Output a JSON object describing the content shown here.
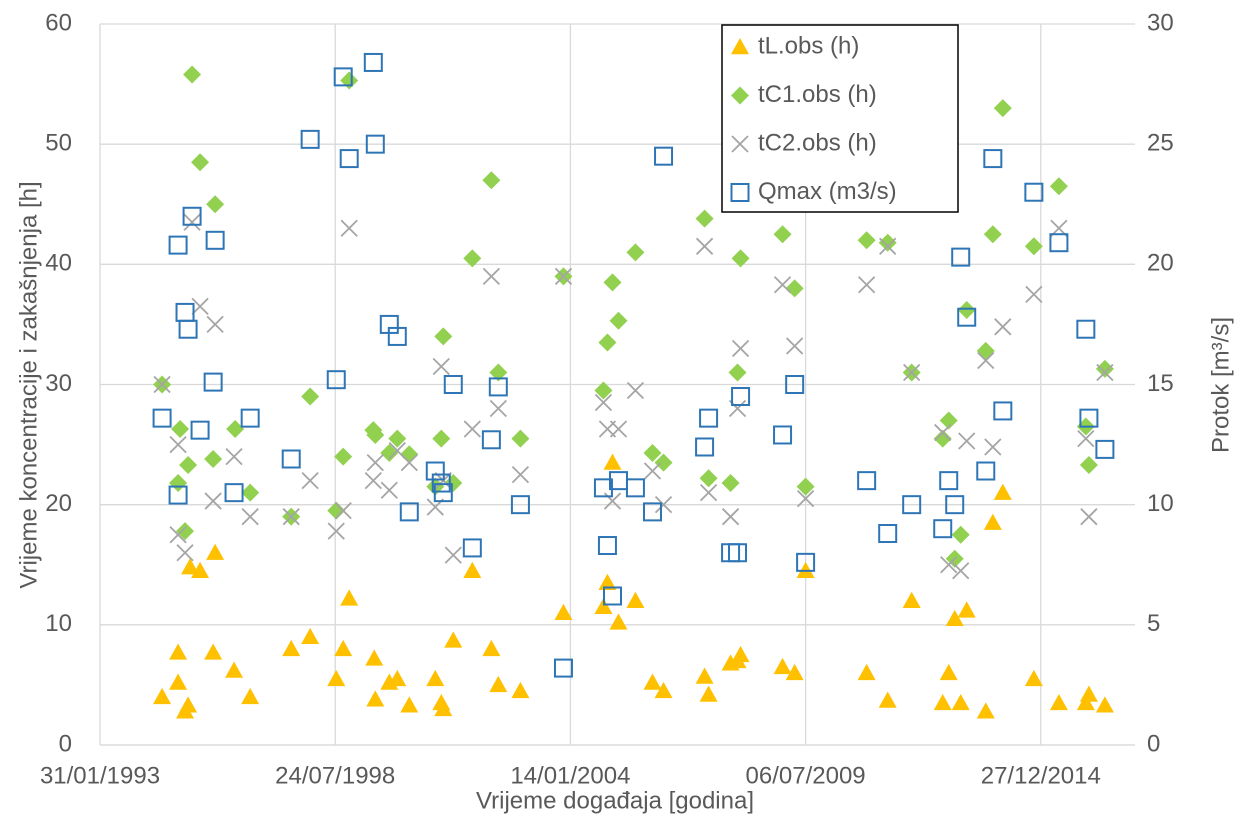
{
  "chart_data": {
    "type": "scatter",
    "x_label": "Vrijeme događaja [godina]",
    "y_label": "Vrijeme koncentracije i zakašnjenja [h]",
    "y2_label": "Protok [m³/s]",
    "xlim": [
      33999,
      42800
    ],
    "xticks": [
      {
        "value": 33999,
        "label": "31/01/1993"
      },
      {
        "value": 35999,
        "label": "24/07/1998"
      },
      {
        "value": 37999,
        "label": "14/01/2004"
      },
      {
        "value": 39999,
        "label": "06/07/2009"
      },
      {
        "value": 41999,
        "label": "27/12/2014"
      }
    ],
    "ylim": [
      0,
      60
    ],
    "yticks": [
      0,
      10,
      20,
      30,
      40,
      50,
      60
    ],
    "y2lim": [
      0,
      30
    ],
    "y2ticks": [
      0,
      5,
      10,
      15,
      20,
      25,
      30
    ],
    "grid": true,
    "legend": "top right",
    "series": [
      {
        "name": "tL.obs (h)",
        "color": "#FFC000",
        "marker": "triangle",
        "x": [
          34527,
          34663,
          34663,
          34722,
          34748,
          34765,
          34850,
          34961,
          34978,
          35139,
          35276,
          35625,
          35786,
          36008,
          36067,
          36118,
          36331,
          36340,
          36459,
          36527,
          36629,
          36850,
          36901,
          36918,
          37003,
          37165,
          37327,
          37386,
          37574,
          37940,
          38280,
          38314,
          38357,
          38408,
          38552,
          38697,
          38791,
          39140,
          39174,
          39361,
          39420,
          39446,
          39803,
          39906,
          39999,
          40518,
          40697,
          40901,
          41165,
          41216,
          41267,
          41318,
          41369,
          41531,
          41591,
          41676,
          41940,
          42153,
          42382,
          42408,
          42544
        ],
        "values": [
          4,
          7.7,
          5.2,
          2.8,
          3.3,
          14.8,
          14.5,
          7.7,
          16,
          6.2,
          4,
          8,
          9,
          5.5,
          8,
          12.2,
          7.2,
          3.8,
          5.2,
          5.5,
          3.3,
          5.5,
          3.5,
          3,
          8.7,
          14.5,
          8,
          5,
          4.5,
          11,
          11.5,
          13.5,
          23.5,
          10.2,
          12,
          5.2,
          4.5,
          5.7,
          4.2,
          6.8,
          7,
          7.5,
          6.5,
          6,
          14.5,
          6,
          3.7,
          12,
          3.5,
          6,
          10.5,
          3.5,
          11.2,
          2.8,
          18.5,
          21,
          5.5,
          3.5,
          3.5,
          4.2,
          3.3
        ]
      },
      {
        "name": "tC1.obs (h)",
        "color": "#92D050",
        "marker": "diamond",
        "x": [
          34527,
          34680,
          34663,
          34722,
          34748,
          34782,
          34850,
          34978,
          34961,
          35148,
          35276,
          35625,
          35786,
          36008,
          36067,
          36118,
          36323,
          36340,
          36459,
          36527,
          36629,
          36850,
          36901,
          36918,
          37003,
          37165,
          37327,
          37386,
          37574,
          37940,
          38280,
          38314,
          38357,
          38408,
          38552,
          38697,
          38791,
          39140,
          39174,
          39361,
          39420,
          39446,
          39803,
          39906,
          39999,
          40518,
          40697,
          40901,
          41165,
          41216,
          41267,
          41318,
          41369,
          41531,
          41591,
          41676,
          41940,
          42153,
          42382,
          42408,
          42544
        ],
        "values": [
          30,
          26.3,
          21.8,
          17.8,
          23.3,
          55.8,
          48.5,
          45,
          23.8,
          26.3,
          21,
          19,
          29,
          19.5,
          24,
          55.3,
          26.2,
          25.8,
          24.3,
          25.5,
          24.2,
          21.5,
          25.5,
          34,
          21.8,
          40.5,
          47,
          31,
          25.5,
          39,
          29.5,
          33.5,
          38.5,
          35.3,
          41,
          24.3,
          23.5,
          43.8,
          22.2,
          21.8,
          31,
          40.5,
          42.5,
          38,
          21.5,
          42,
          41.8,
          31,
          25.5,
          27,
          15.5,
          17.5,
          36.2,
          32.8,
          42.5,
          53,
          41.5,
          46.5,
          26.5,
          23.3,
          31.3
        ]
      },
      {
        "name": "tC2.obs (h)",
        "color": "#A5A5A5",
        "marker": "cross",
        "x": [
          34527,
          34663,
          34663,
          34722,
          34782,
          34850,
          34978,
          34961,
          35139,
          35276,
          35625,
          35786,
          36008,
          36067,
          36118,
          36323,
          36340,
          36459,
          36527,
          36629,
          36850,
          36901,
          36918,
          37003,
          37165,
          37327,
          37386,
          37574,
          37940,
          38280,
          38314,
          38357,
          38408,
          38552,
          38697,
          38791,
          39140,
          39174,
          39361,
          39420,
          39446,
          39803,
          39906,
          39999,
          40518,
          40697,
          40901,
          41165,
          41216,
          41318,
          41369,
          41531,
          41591,
          41676,
          41940,
          42153,
          42382,
          42408,
          42544
        ],
        "values": [
          30,
          25,
          17.5,
          16,
          43.5,
          36.5,
          35,
          20.3,
          24,
          19,
          19,
          22,
          17.8,
          19.5,
          43,
          22,
          23.5,
          21.2,
          24.5,
          23.5,
          19.8,
          31.5,
          22,
          15.8,
          26.3,
          39,
          28,
          22.5,
          39,
          28.5,
          26.3,
          20.3,
          26.3,
          29.5,
          22.8,
          20,
          41.5,
          21,
          19,
          28,
          33,
          38.3,
          33.2,
          20.5,
          38.3,
          41.5,
          31,
          26,
          15,
          14.5,
          25.3,
          32,
          24.8,
          34.8,
          37.5,
          43,
          25.5,
          19,
          31
        ]
      },
      {
        "name": "Qmax (m3/s)",
        "color": "#2E75B6",
        "marker": "square",
        "axis": "y2",
        "x": [
          34527,
          34663,
          34663,
          34722,
          34748,
          34782,
          34850,
          34978,
          34961,
          35139,
          35276,
          35625,
          35786,
          36008,
          36067,
          36118,
          36323,
          36340,
          36459,
          36527,
          36629,
          36850,
          36901,
          36918,
          37003,
          37165,
          37327,
          37386,
          37574,
          37940,
          38280,
          38314,
          38357,
          38408,
          38552,
          38697,
          38791,
          39140,
          39174,
          39361,
          39420,
          39446,
          39803,
          39906,
          39999,
          40518,
          40697,
          40901,
          41165,
          41216,
          41267,
          41318,
          41369,
          41531,
          41591,
          41676,
          41940,
          42153,
          42382,
          42408,
          42544
        ],
        "values": [
          13.6,
          20.8,
          10.4,
          18,
          17.3,
          22,
          13.1,
          21,
          15.1,
          10.5,
          13.6,
          11.9,
          25.2,
          15.2,
          27.8,
          24.4,
          28.4,
          25,
          17.5,
          17,
          9.7,
          11.4,
          10.9,
          10.5,
          15,
          8.2,
          12.7,
          14.9,
          10,
          3.2,
          10.7,
          8.3,
          6.2,
          11,
          10.7,
          9.7,
          24.5,
          12.4,
          13.6,
          8,
          8,
          14.5,
          12.9,
          15,
          7.6,
          11,
          8.8,
          10,
          9,
          11,
          10,
          20.3,
          17.8,
          11.4,
          24.4,
          13.9,
          23,
          20.9,
          17.3,
          13.6,
          12.3
        ]
      }
    ]
  }
}
